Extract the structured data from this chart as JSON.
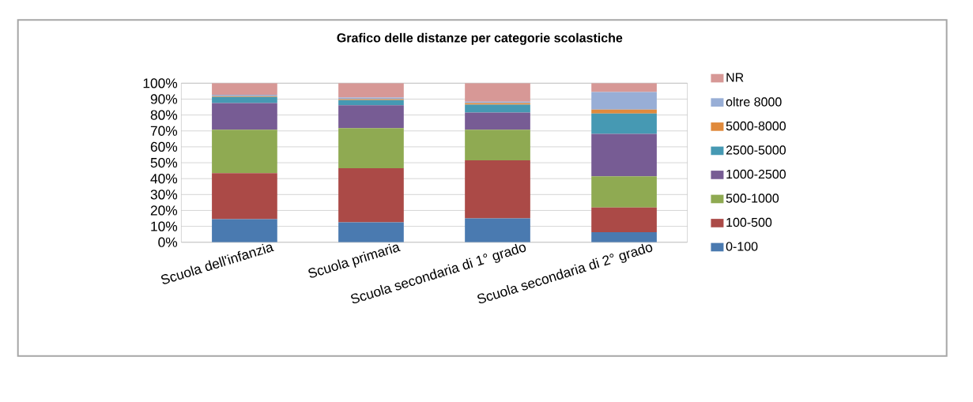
{
  "chart_data": {
    "type": "bar",
    "title": "Grafico delle distanze  per categorie scolastiche",
    "categories": [
      "Scuola dell'infanzia",
      "Scuola primaria",
      "Scuola secondaria di 1°  grado",
      "Scuola secondaria di 2°  grado"
    ],
    "stacked": true,
    "series": [
      {
        "name": "0-100",
        "color": "#4a7ab0",
        "values": [
          14.5,
          12.5,
          15,
          6.3
        ]
      },
      {
        "name": "100-500",
        "color": "#ab4a47",
        "values": [
          29,
          34,
          36.5,
          15.6
        ]
      },
      {
        "name": "500-1000",
        "color": "#8faa52",
        "values": [
          27.3,
          25.3,
          19.3,
          19.6
        ]
      },
      {
        "name": "1000-2500",
        "color": "#775c94",
        "values": [
          16.7,
          14.4,
          10.8,
          26.6
        ]
      },
      {
        "name": "2500-5000",
        "color": "#4699b3",
        "values": [
          3.9,
          3.2,
          4.9,
          12.8
        ]
      },
      {
        "name": "5000-8000",
        "color": "#e08a3c",
        "values": [
          0.5,
          0.6,
          1,
          2.5
        ]
      },
      {
        "name": "oltre 8000",
        "color": "#98aed6",
        "values": [
          0.8,
          1,
          0.9,
          11.1
        ]
      },
      {
        "name": "NR",
        "color": "#d79896",
        "values": [
          7.3,
          9,
          11.6,
          5.5
        ]
      }
    ],
    "ylim": [
      0,
      100
    ],
    "yticks": [
      {
        "value": 0,
        "label": "0%"
      },
      {
        "value": 10,
        "label": "10%"
      },
      {
        "value": 20,
        "label": "20%"
      },
      {
        "value": 30,
        "label": "30%"
      },
      {
        "value": 40,
        "label": "40%"
      },
      {
        "value": 50,
        "label": "50%"
      },
      {
        "value": 60,
        "label": "60%"
      },
      {
        "value": 70,
        "label": "70%"
      },
      {
        "value": 80,
        "label": "80%"
      },
      {
        "value": 90,
        "label": "90%"
      },
      {
        "value": 100,
        "label": "100%"
      }
    ],
    "grid": "y",
    "legend": "right"
  }
}
